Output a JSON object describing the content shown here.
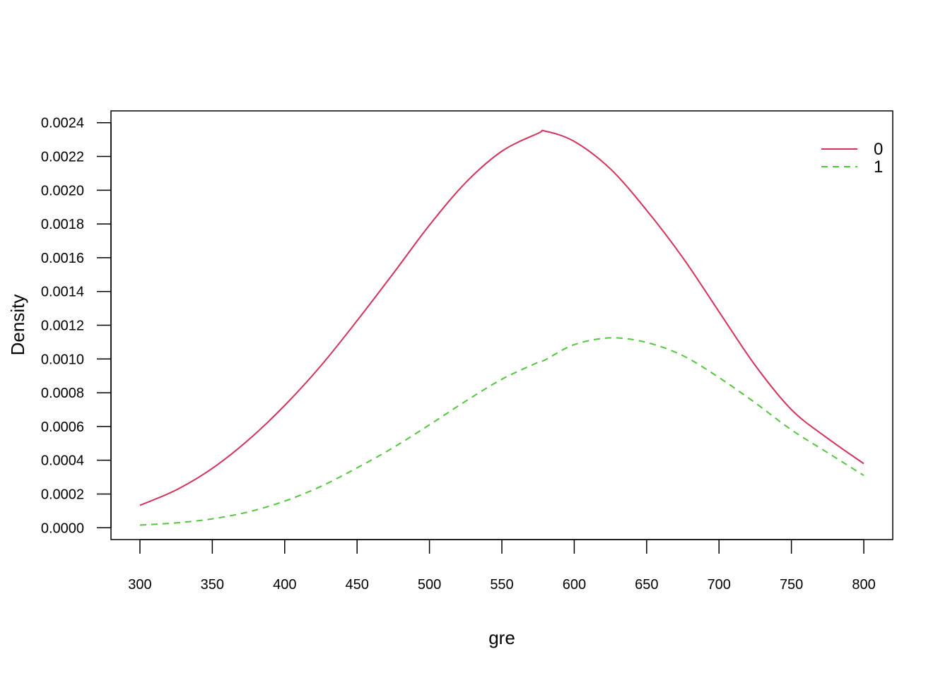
{
  "chart_data": {
    "type": "line",
    "title": "",
    "xlabel": "gre",
    "ylabel": "Density",
    "xlim": [
      280,
      820
    ],
    "ylim": [
      -7e-05,
      0.00247
    ],
    "x_ticks": [
      300,
      350,
      400,
      450,
      500,
      550,
      600,
      650,
      700,
      750,
      800
    ],
    "x_tick_labels": [
      "300",
      "350",
      "400",
      "450",
      "500",
      "550",
      "600",
      "650",
      "700",
      "750",
      "800"
    ],
    "y_ticks": [
      0,
      0.0002,
      0.0004,
      0.0006,
      0.0008,
      0.001,
      0.0012,
      0.0014,
      0.0016,
      0.0018,
      0.002,
      0.0022,
      0.0024
    ],
    "y_tick_labels": [
      "0.0000",
      "0.0002",
      "0.0004",
      "0.0006",
      "0.0008",
      "0.0010",
      "0.0012",
      "0.0014",
      "0.0016",
      "0.0018",
      "0.0020",
      "0.0022",
      "0.0024"
    ],
    "grid": false,
    "legend_position": "top-right",
    "x": [
      300,
      325,
      350,
      375,
      400,
      425,
      450,
      475,
      500,
      525,
      550,
      575,
      580,
      600,
      625,
      650,
      675,
      700,
      725,
      750,
      775,
      800
    ],
    "series": [
      {
        "name": "0",
        "color": "#D1335A",
        "dash": "solid",
        "values": [
          0.000133,
          0.000224,
          0.000352,
          0.000521,
          0.000725,
          0.00096,
          0.001227,
          0.001507,
          0.001793,
          0.002045,
          0.002231,
          0.002337,
          0.00235,
          0.002289,
          0.002126,
          0.001881,
          0.0016,
          0.00128,
          0.000962,
          0.0007,
          0.00053,
          0.00038
        ]
      },
      {
        "name": "1",
        "color": "#52C73D",
        "dash": "dashed",
        "values": [
          1.6e-05,
          2.9e-05,
          5.3e-05,
          9.4e-05,
          0.000158,
          0.000245,
          0.000355,
          0.000475,
          0.00061,
          0.00075,
          0.00088,
          0.00098,
          0.000995,
          0.001085,
          0.001125,
          0.001098,
          0.00102,
          0.00089,
          0.00074,
          0.00058,
          0.000445,
          0.00031
        ]
      }
    ]
  }
}
